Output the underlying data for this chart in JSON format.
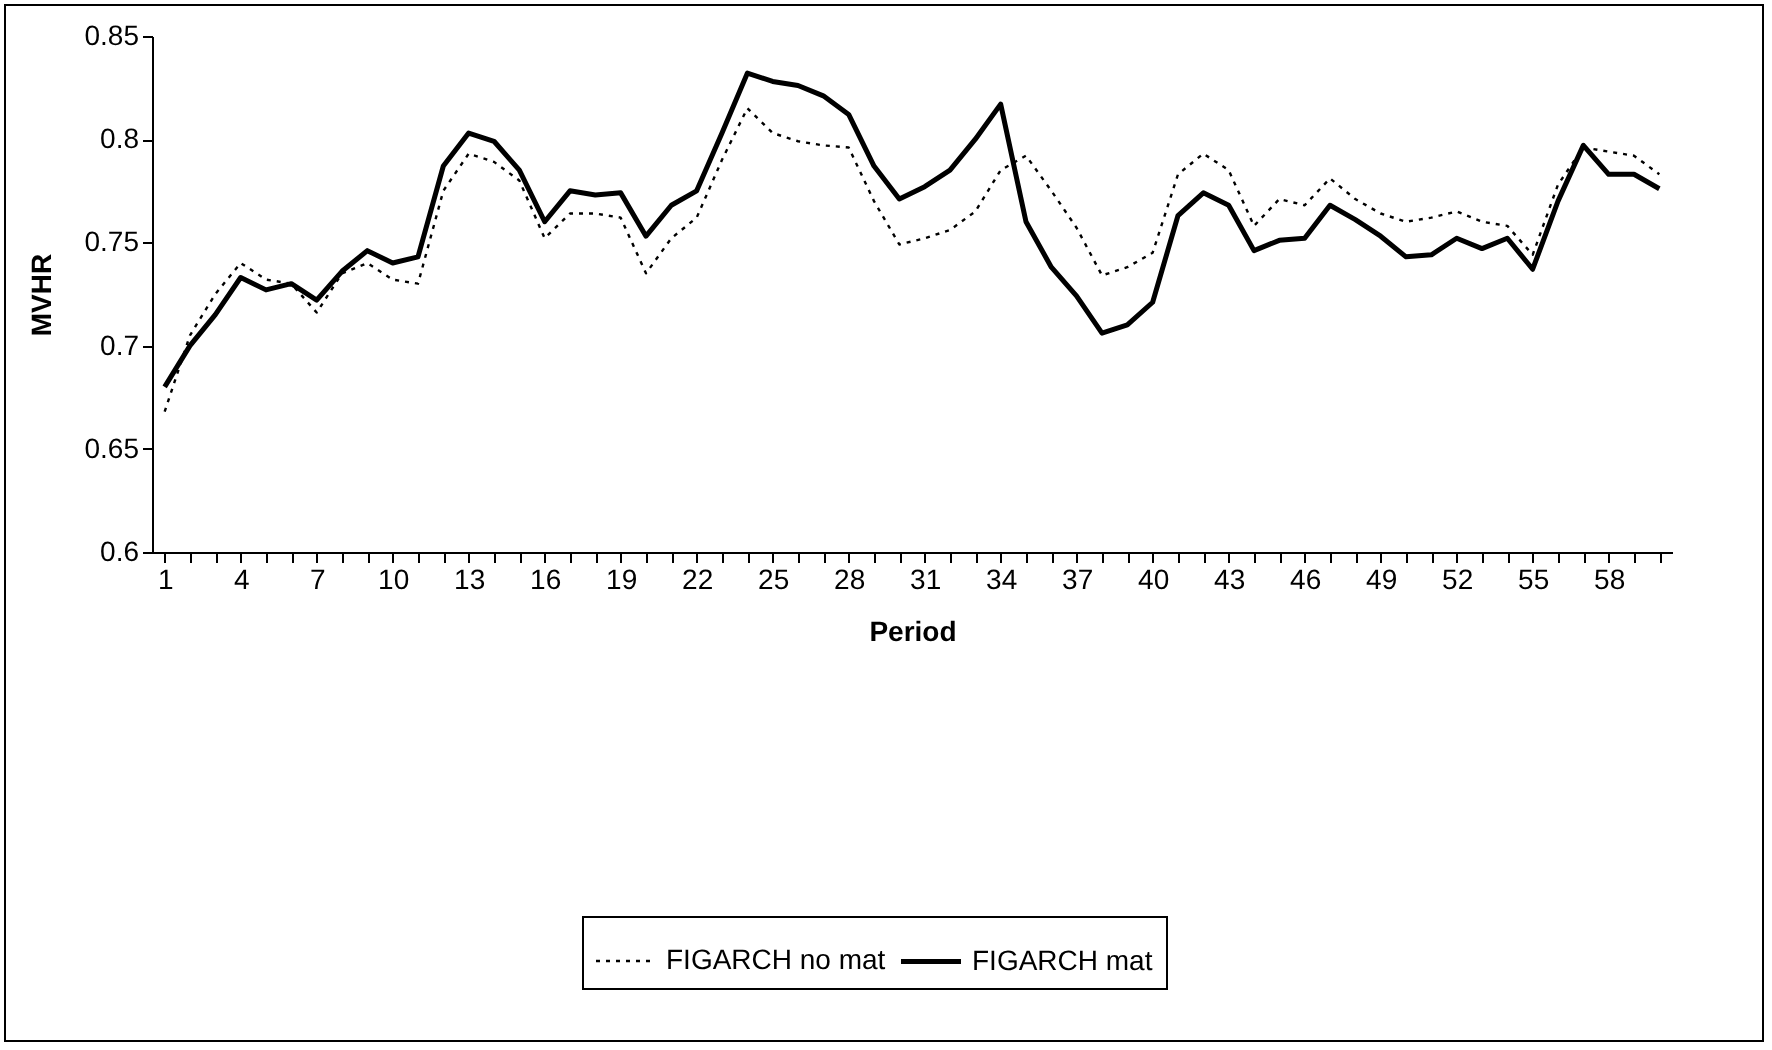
{
  "chart_data": {
    "type": "line",
    "xlabel": "Period",
    "ylabel": "MVHR",
    "categories": [
      "1",
      null,
      null,
      "4",
      null,
      null,
      "7",
      null,
      null,
      "10",
      null,
      null,
      "13",
      null,
      null,
      "16",
      null,
      null,
      "19",
      null,
      null,
      "22",
      null,
      null,
      "25",
      null,
      null,
      "28",
      null,
      null,
      "31",
      null,
      null,
      "34",
      null,
      null,
      "37",
      null,
      null,
      "40",
      null,
      null,
      "43",
      null,
      null,
      "46",
      null,
      null,
      "49",
      null,
      null,
      "52",
      null,
      null,
      "55",
      null,
      null,
      "58",
      null,
      null
    ],
    "ylim": [
      0.6,
      0.85
    ],
    "yticks": [
      0.6,
      0.65,
      0.7,
      0.75,
      0.8,
      0.85
    ],
    "grid": false,
    "legend": "bottom",
    "marker": "none",
    "series": [
      {
        "name": "FIGARCH no mat",
        "color": "#000000",
        "line_style": "dotted",
        "values": [
          0.668,
          0.705,
          0.725,
          0.74,
          0.732,
          0.73,
          0.716,
          0.735,
          0.74,
          0.732,
          0.73,
          0.775,
          0.793,
          0.789,
          0.78,
          0.752,
          0.764,
          0.764,
          0.762,
          0.735,
          0.752,
          0.762,
          0.79,
          0.815,
          0.803,
          0.799,
          0.797,
          0.796,
          0.77,
          0.749,
          0.752,
          0.756,
          0.765,
          0.785,
          0.792,
          0.775,
          0.757,
          0.734,
          0.738,
          0.745,
          0.783,
          0.793,
          0.785,
          0.758,
          0.771,
          0.768,
          0.781,
          0.771,
          0.764,
          0.76,
          0.762,
          0.765,
          0.76,
          0.758,
          0.744,
          0.778,
          0.796,
          0.794,
          0.792,
          0.783
        ]
      },
      {
        "name": "FIGARCH mat",
        "color": "#000000",
        "line_style": "solid",
        "values": [
          0.68,
          0.7,
          0.715,
          0.733,
          0.727,
          0.73,
          0.722,
          0.736,
          0.746,
          0.74,
          0.743,
          0.787,
          0.803,
          0.799,
          0.785,
          0.76,
          0.775,
          0.773,
          0.774,
          0.753,
          0.768,
          0.775,
          0.803,
          0.832,
          0.828,
          0.826,
          0.821,
          0.812,
          0.787,
          0.771,
          0.777,
          0.785,
          0.8,
          0.817,
          0.76,
          0.738,
          0.724,
          0.706,
          0.71,
          0.721,
          0.763,
          0.774,
          0.768,
          0.746,
          0.751,
          0.752,
          0.768,
          0.761,
          0.753,
          0.743,
          0.744,
          0.752,
          0.747,
          0.752,
          0.737,
          0.77,
          0.797,
          0.783,
          0.783,
          0.776
        ]
      }
    ]
  }
}
